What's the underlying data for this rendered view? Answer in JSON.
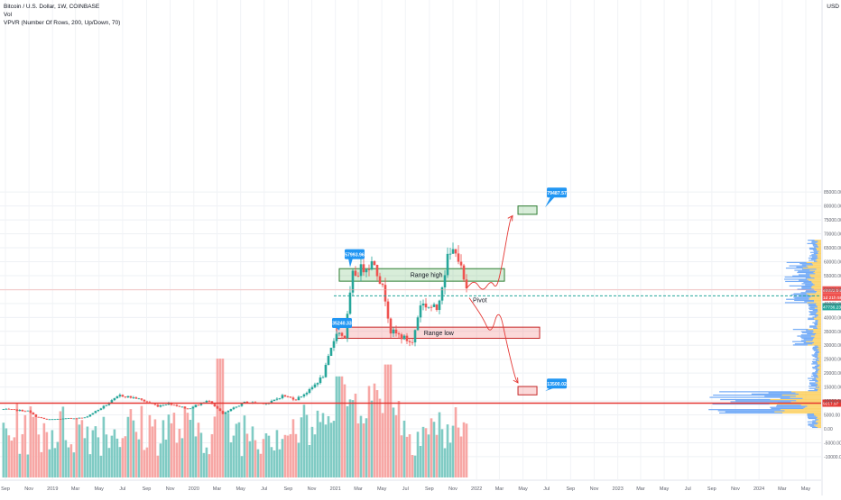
{
  "header": {
    "symbol": "Bitcoin / U.S. Dollar, 1W, COINBASE",
    "indicator_vol": "Vol",
    "indicator_vpvr": "VPVR (Number Of Rows, 200, Up/Down, 70)"
  },
  "currency": "USD",
  "colors": {
    "up": "#26a69a",
    "down": "#ef5350",
    "up_volume": "#80cbc4",
    "down_volume": "#f7a7a5",
    "support_line": "#e53935",
    "box_high": "#2e7d32",
    "box_low": "#c62828",
    "callout": "#2196f3",
    "pivot_line": "#26a69a"
  },
  "chart_data": {
    "type": "candlestick",
    "interval": "1W",
    "y_axis": {
      "label": "USD",
      "ticks": [
        -10000,
        -5000,
        0,
        5000,
        10000,
        15000,
        20000,
        25000,
        30000,
        35000,
        40000,
        45000,
        50000,
        55000,
        60000,
        65000,
        70000,
        75000,
        80000,
        85000
      ],
      "tick_labels": [
        "-10000.00",
        "-5000.00",
        "0.00",
        "5000.00",
        "10000.00",
        "15000.00",
        "20000.00",
        "25000.00",
        "30000.00",
        "35000.00",
        "40000.00",
        "45000.00",
        "50000.00",
        "55000.00",
        "60000.00",
        "65000.00",
        "70000.00",
        "75000.00",
        "80000.00",
        "85000.00"
      ]
    },
    "x_axis": {
      "labels": [
        "Sep",
        "Nov",
        "2019",
        "Mar",
        "May",
        "Jul",
        "Sep",
        "Nov",
        "2020",
        "Mar",
        "May",
        "Jul",
        "Sep",
        "Nov",
        "2021",
        "Mar",
        "May",
        "Jul",
        "Sep",
        "Nov",
        "2022",
        "Mar",
        "May",
        "Jul",
        "Sep",
        "Nov",
        "2023",
        "Mar",
        "May",
        "Jul",
        "Sep",
        "Nov",
        "2024",
        "Mar",
        "May"
      ],
      "label_dates": [
        "2018-09",
        "2018-11",
        "2019-01",
        "2019-03",
        "2019-05",
        "2019-07",
        "2019-09",
        "2019-11",
        "2020-01",
        "2020-03",
        "2020-05",
        "2020-07",
        "2020-09",
        "2020-11",
        "2021-01",
        "2021-03",
        "2021-05",
        "2021-07",
        "2021-09",
        "2021-11",
        "2022-01",
        "2022-03",
        "2022-05",
        "2022-07",
        "2022-09",
        "2022-11",
        "2023-01",
        "2023-03",
        "2023-05",
        "2023-07",
        "2023-09",
        "2023-11",
        "2024-01",
        "2024-03",
        "2024-05"
      ]
    },
    "price_anchors": [
      {
        "date": "2018-08-27",
        "price": 7000
      },
      {
        "date": "2018-10-29",
        "price": 6400
      },
      {
        "date": "2018-11-19",
        "price": 4400
      },
      {
        "date": "2018-12-17",
        "price": 3300
      },
      {
        "date": "2019-03-25",
        "price": 4000
      },
      {
        "date": "2019-05-13",
        "price": 8000
      },
      {
        "date": "2019-06-24",
        "price": 12000
      },
      {
        "date": "2019-08-05",
        "price": 11000
      },
      {
        "date": "2019-09-30",
        "price": 8200
      },
      {
        "date": "2019-10-28",
        "price": 9200
      },
      {
        "date": "2019-12-16",
        "price": 7200
      },
      {
        "date": "2020-02-10",
        "price": 10200
      },
      {
        "date": "2020-03-16",
        "price": 5300
      },
      {
        "date": "2020-05-11",
        "price": 9500
      },
      {
        "date": "2020-07-13",
        "price": 9200
      },
      {
        "date": "2020-08-17",
        "price": 11900
      },
      {
        "date": "2020-09-21",
        "price": 10600
      },
      {
        "date": "2020-10-26",
        "price": 13800
      },
      {
        "date": "2020-11-30",
        "price": 19000
      },
      {
        "date": "2021-01-04",
        "price": 35000
      },
      {
        "date": "2021-01-25",
        "price": 33000
      },
      {
        "date": "2021-02-15",
        "price": 55000
      },
      {
        "date": "2021-03-15",
        "price": 58000
      },
      {
        "date": "2021-04-12",
        "price": 60000
      },
      {
        "date": "2021-05-10",
        "price": 47000
      },
      {
        "date": "2021-05-24",
        "price": 35000
      },
      {
        "date": "2021-06-21",
        "price": 33000
      },
      {
        "date": "2021-07-19",
        "price": 30800
      },
      {
        "date": "2021-08-09",
        "price": 45000
      },
      {
        "date": "2021-09-20",
        "price": 43000
      },
      {
        "date": "2021-10-18",
        "price": 61000
      },
      {
        "date": "2021-11-08",
        "price": 65000
      },
      {
        "date": "2021-11-22",
        "price": 57000
      },
      {
        "date": "2021-12-06",
        "price": 49000
      }
    ],
    "volume_max": 16000,
    "current_price": "49882.54",
    "current_price_sub": "1d 21h 59",
    "pivot_price": "47736.23",
    "pivot_value": 47736,
    "support_price": "9217.97",
    "support_value": 9218,
    "callouts": [
      {
        "label": "57993.96",
        "value": 57994,
        "date": "2021-02-08"
      },
      {
        "label": "35240.33",
        "value": 35240,
        "date": "2021-01-11"
      },
      {
        "label": "79487.57",
        "value": 79488,
        "date": "2022-06-27"
      },
      {
        "label": "13500.02",
        "value": 13500,
        "date": "2022-06-27"
      }
    ],
    "zones": [
      {
        "label": "Range high",
        "from_date": "2021-01-11",
        "to_date": "2022-03-14",
        "low": 53000,
        "high": 57500,
        "kind": "high"
      },
      {
        "label": "Range low",
        "from_date": "2021-01-04",
        "to_date": "2022-06-13",
        "low": 32500,
        "high": 36500,
        "kind": "low"
      },
      {
        "label": "",
        "from_date": "2022-04-18",
        "to_date": "2022-06-06",
        "low": 77000,
        "high": 80000,
        "kind": "target-high"
      },
      {
        "label": "",
        "from_date": "2022-04-18",
        "to_date": "2022-06-06",
        "low": 12200,
        "high": 15200,
        "kind": "target-low"
      }
    ],
    "annotations": [
      {
        "text": "Pivot",
        "date": "2021-12-13",
        "value": 45500
      }
    ],
    "projected_paths": [
      {
        "name": "up",
        "points": [
          [
            "2021-12-06",
            50500
          ],
          [
            "2021-12-27",
            53500
          ],
          [
            "2022-01-17",
            49000
          ],
          [
            "2022-02-07",
            53500
          ],
          [
            "2022-02-21",
            50000
          ],
          [
            "2022-03-07",
            58000
          ],
          [
            "2022-03-28",
            75000
          ],
          [
            "2022-04-04",
            76500
          ]
        ]
      },
      {
        "name": "down",
        "points": [
          [
            "2021-12-13",
            47000
          ],
          [
            "2022-01-17",
            40000
          ],
          [
            "2022-02-07",
            33500
          ],
          [
            "2022-02-28",
            44000
          ],
          [
            "2022-03-21",
            30000
          ],
          [
            "2022-04-11",
            18000
          ],
          [
            "2022-04-18",
            16500
          ]
        ]
      }
    ],
    "grid": true
  }
}
